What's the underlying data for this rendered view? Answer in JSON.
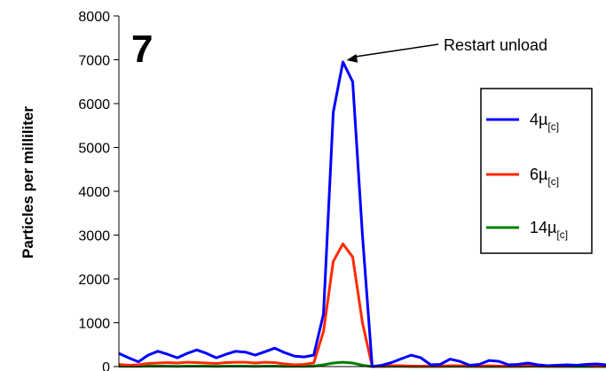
{
  "chart_data": {
    "type": "line",
    "panel_label": "7",
    "title": "",
    "xlabel": "",
    "ylabel": "Particles per milliliter",
    "ylim": [
      0,
      8000
    ],
    "yticks": [
      0,
      1000,
      2000,
      3000,
      4000,
      5000,
      6000,
      7000,
      8000
    ],
    "x": [
      0,
      2,
      4,
      6,
      8,
      10,
      12,
      14,
      16,
      18,
      20,
      22,
      24,
      26,
      28,
      30,
      32,
      34,
      36,
      38,
      40,
      42,
      44,
      46,
      48,
      50,
      52,
      54,
      56,
      58,
      60,
      62,
      64,
      66,
      68,
      70,
      72,
      74,
      76,
      78,
      80,
      82,
      84,
      86,
      88,
      90,
      92,
      94,
      96,
      98,
      100
    ],
    "xlim": [
      0,
      100
    ],
    "series": [
      {
        "name": "4µ[c]",
        "label_main": "4µ",
        "label_sub": "[c]",
        "color": "#0000ff",
        "values": [
          300,
          200,
          110,
          260,
          350,
          280,
          200,
          300,
          380,
          300,
          200,
          280,
          350,
          330,
          260,
          340,
          420,
          320,
          240,
          220,
          260,
          1200,
          5800,
          6950,
          6500,
          3000,
          0,
          30,
          90,
          180,
          260,
          200,
          40,
          50,
          170,
          120,
          30,
          50,
          140,
          120,
          40,
          50,
          80,
          40,
          20,
          30,
          40,
          30,
          50,
          60,
          40
        ]
      },
      {
        "name": "6µ[c]",
        "label_main": "6µ",
        "label_sub": "[c]",
        "color": "#ff2a00",
        "values": [
          50,
          30,
          40,
          70,
          80,
          90,
          80,
          100,
          90,
          80,
          70,
          90,
          100,
          100,
          80,
          100,
          90,
          60,
          40,
          50,
          80,
          800,
          2400,
          2800,
          2500,
          1000,
          0,
          10,
          20,
          20,
          10,
          10,
          10,
          10,
          20,
          20,
          10,
          10,
          20,
          10,
          10,
          10,
          20,
          10,
          10,
          10,
          10,
          20,
          20,
          10,
          10
        ]
      },
      {
        "name": "14µ[c]",
        "label_main": "14µ",
        "label_sub": "[c]",
        "color": "#008000",
        "values": [
          5,
          5,
          5,
          10,
          10,
          10,
          5,
          10,
          10,
          10,
          5,
          10,
          10,
          10,
          5,
          10,
          10,
          5,
          5,
          5,
          10,
          40,
          80,
          100,
          80,
          30,
          0,
          0,
          5,
          5,
          0,
          0,
          0,
          0,
          5,
          5,
          0,
          0,
          0,
          0,
          0,
          0,
          5,
          5,
          0,
          0,
          0,
          0,
          0,
          0,
          0
        ]
      }
    ],
    "annotations": [
      {
        "text": "Restart unload",
        "x": 46,
        "y": 6950
      }
    ],
    "legend_position": "right",
    "grid": false
  }
}
